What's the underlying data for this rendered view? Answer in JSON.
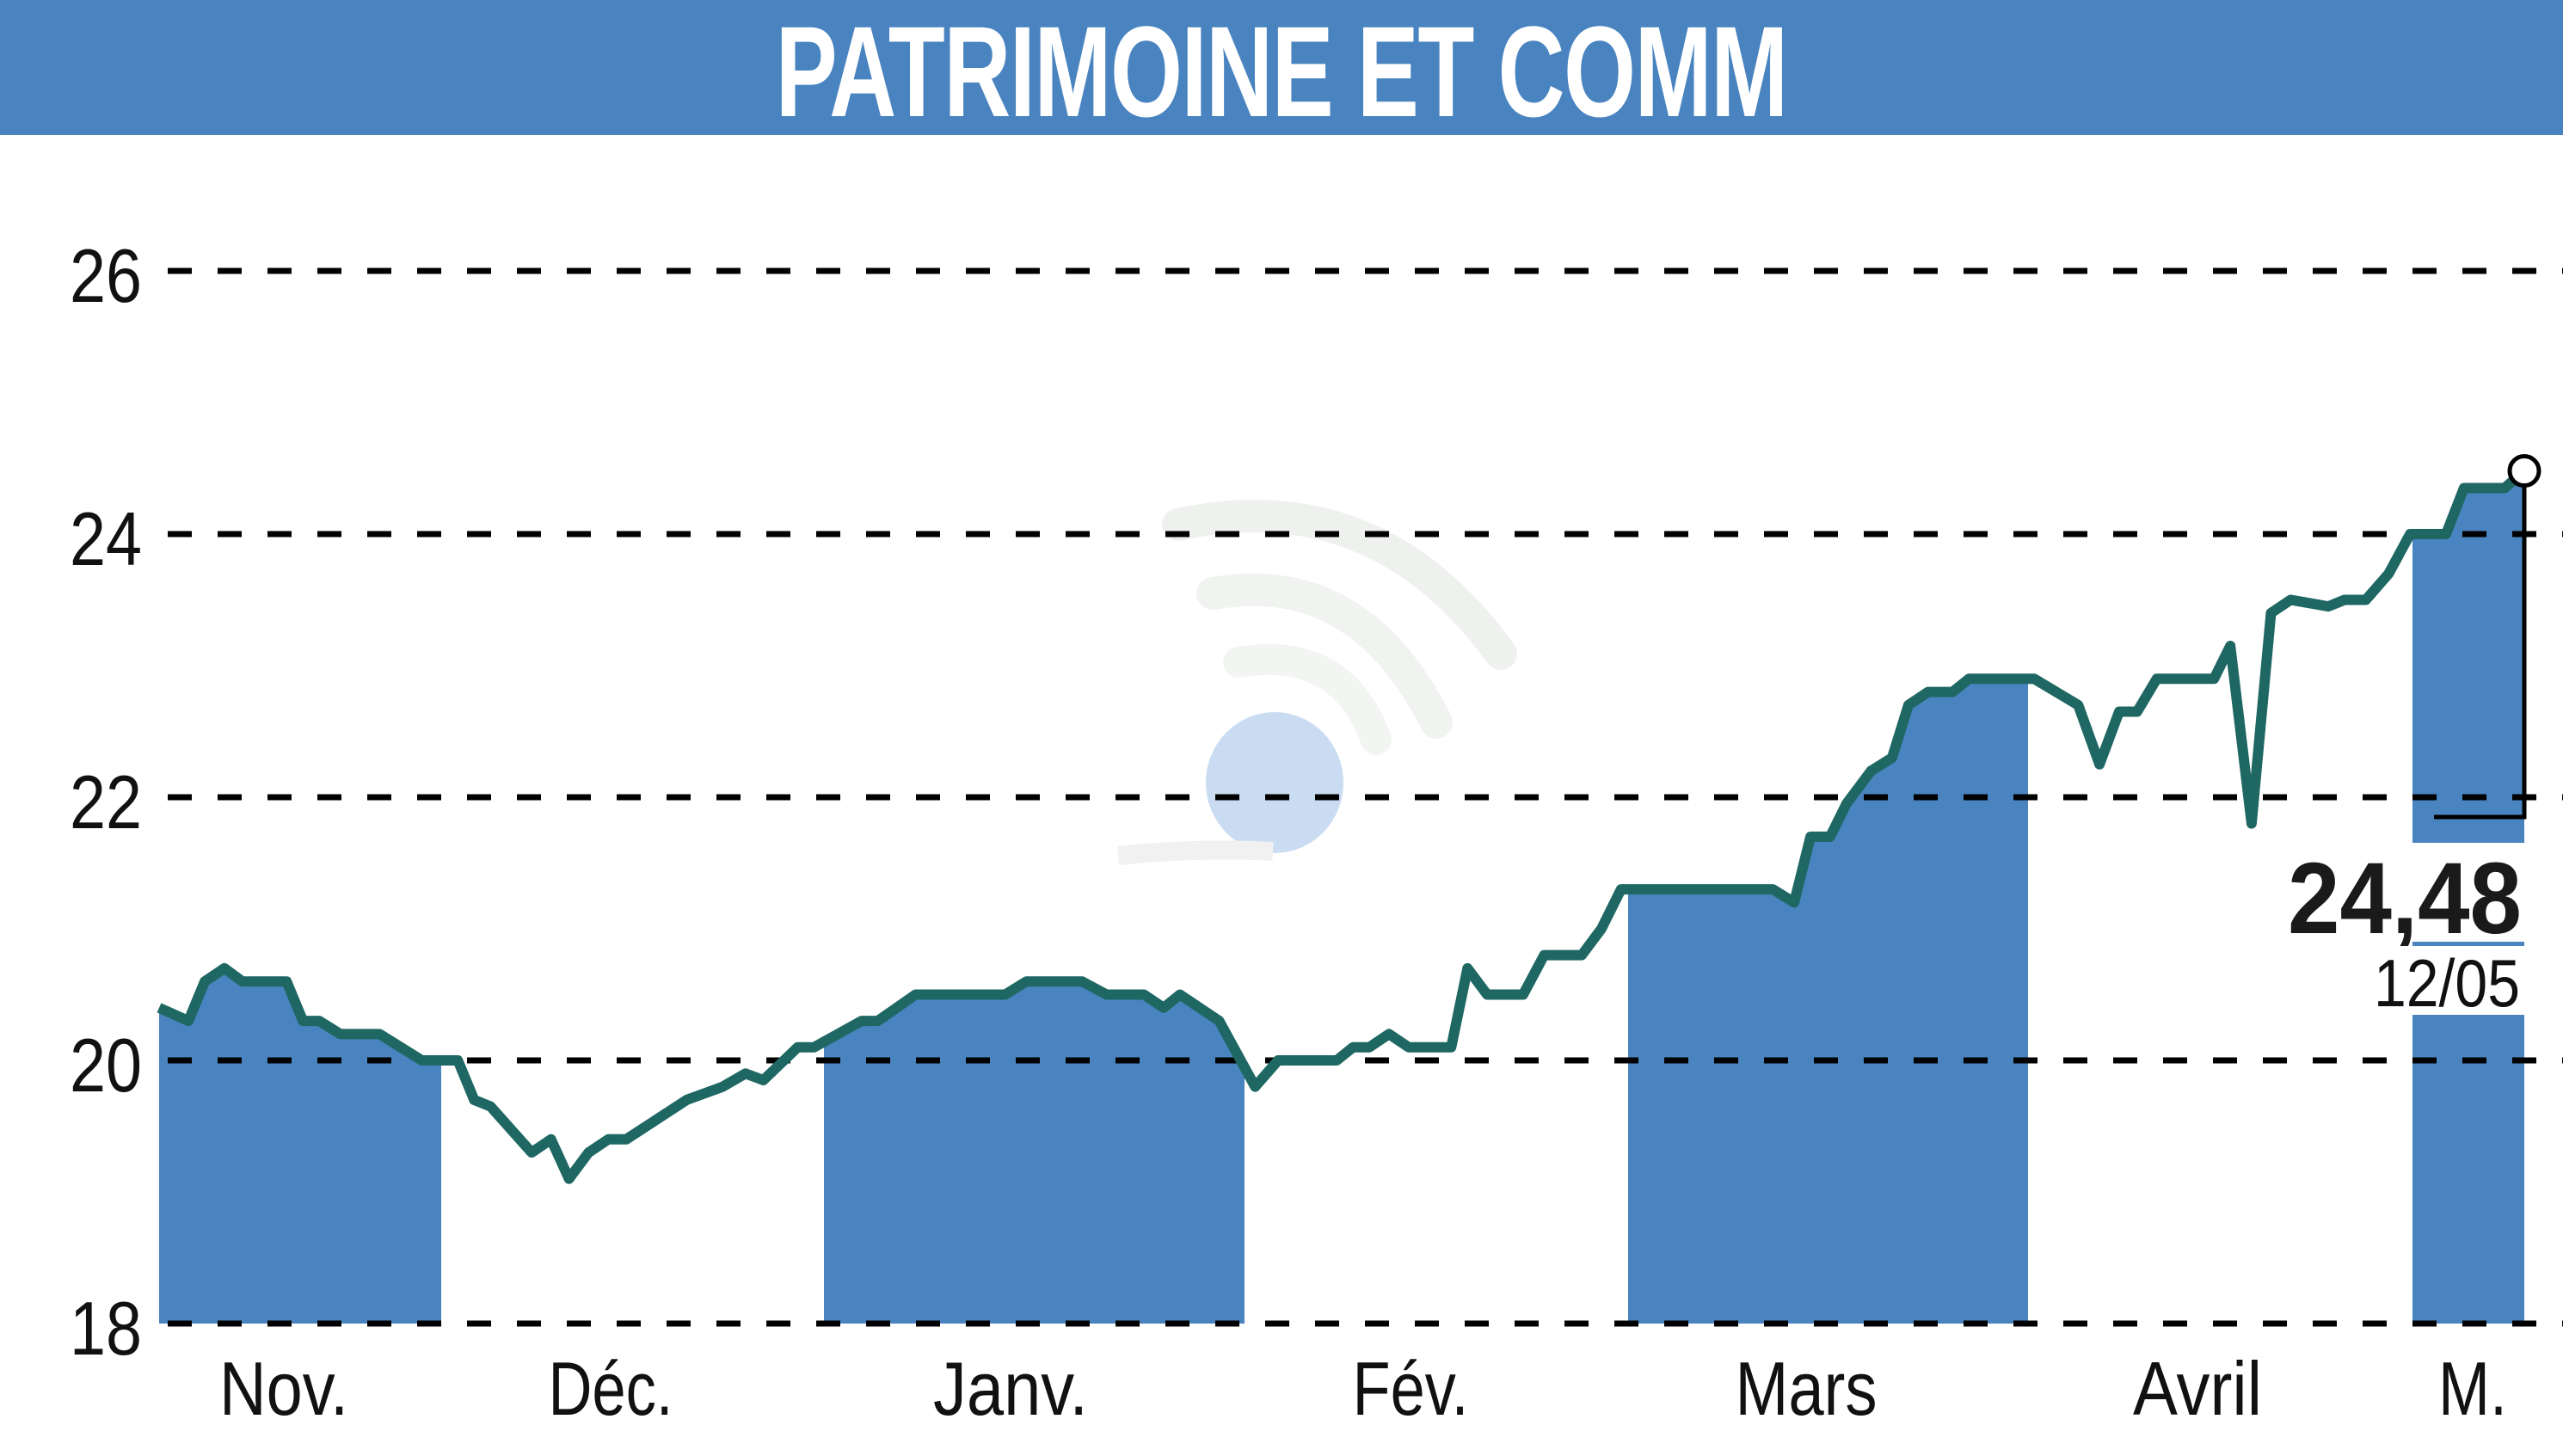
{
  "header": {
    "title": "PATRIMOINE ET COMM"
  },
  "colors": {
    "title_bg": "#4a84c0",
    "shade": "#4a84c0",
    "line": "#1f6763",
    "grid": "#000000"
  },
  "last": {
    "value": "24,48",
    "date": "12/05"
  },
  "chart_data": {
    "type": "line",
    "title": "PATRIMOINE ET COMM",
    "xlabel": "",
    "ylabel": "",
    "ylim": [
      18,
      26
    ],
    "yticks": [
      18,
      20,
      22,
      24,
      26
    ],
    "ytick_labels": [
      "18",
      "20",
      "22",
      "24",
      "26"
    ],
    "grid": "horizontal dashed",
    "month_labels": [
      "Nov.",
      "Déc.",
      "Janv.",
      "Fév.",
      "Mars",
      "Avril",
      "M."
    ],
    "shaded_months": [
      "Nov.",
      "Janv.",
      "Mars",
      "M."
    ],
    "last_value": 24.48,
    "last_date": "12/05",
    "series": [
      {
        "name": "PATRIMOINE ET COMM",
        "x_frac": [
          0,
          0.0124,
          0.0193,
          0.0276,
          0.0352,
          0.0539,
          0.0608,
          0.0677,
          0.0766,
          0.0932,
          0.1111,
          0.1263,
          0.1332,
          0.1401,
          0.1575,
          0.1657,
          0.1733,
          0.1816,
          0.1899,
          0.1975,
          0.2231,
          0.2383,
          0.2479,
          0.2555,
          0.27,
          0.2769,
          0.297,
          0.3039,
          0.3198,
          0.3577,
          0.3667,
          0.3902,
          0.4006,
          0.4164,
          0.4247,
          0.4316,
          0.4482,
          0.4634,
          0.4731,
          0.4979,
          0.5048,
          0.5117,
          0.52,
          0.5283,
          0.5463,
          0.5532,
          0.5615,
          0.5767,
          0.5856,
          0.6015,
          0.6098,
          0.6181,
          0.6823,
          0.6913,
          0.6982,
          0.7065,
          0.7134,
          0.7238,
          0.7327,
          0.7396,
          0.7479,
          0.7583,
          0.7652,
          0.7928,
          0.8114,
          0.8204,
          0.8287,
          0.8363,
          0.8446,
          0.8688,
          0.8757,
          0.8847,
          0.8929,
          0.9012,
          0.9171,
          0.924,
          0.933,
          0.9427,
          0.9517,
          0.9669,
          0.9745,
          0.9917,
          1.0
        ],
        "values": [
          20.4,
          20.3,
          20.6,
          20.7,
          20.6,
          20.6,
          20.3,
          20.3,
          20.2,
          20.2,
          20.0,
          20.0,
          19.7,
          19.65,
          19.3,
          19.4,
          19.1,
          19.3,
          19.4,
          19.4,
          19.7,
          19.8,
          19.9,
          19.85,
          20.1,
          20.1,
          20.3,
          20.3,
          20.5,
          20.5,
          20.6,
          20.6,
          20.5,
          20.5,
          20.4,
          20.5,
          20.3,
          19.8,
          20.0,
          20.0,
          20.1,
          20.1,
          20.2,
          20.1,
          20.1,
          20.7,
          20.5,
          20.5,
          20.8,
          20.8,
          21.0,
          21.3,
          21.3,
          21.2,
          21.7,
          21.7,
          21.95,
          22.2,
          22.3,
          22.7,
          22.8,
          22.8,
          22.9,
          22.9,
          22.7,
          22.25,
          22.65,
          22.65,
          22.9,
          22.9,
          23.15,
          21.8,
          23.4,
          23.5,
          23.45,
          23.5,
          23.5,
          23.7,
          24.0,
          24.0,
          24.35,
          24.35,
          24.48
        ]
      }
    ]
  }
}
